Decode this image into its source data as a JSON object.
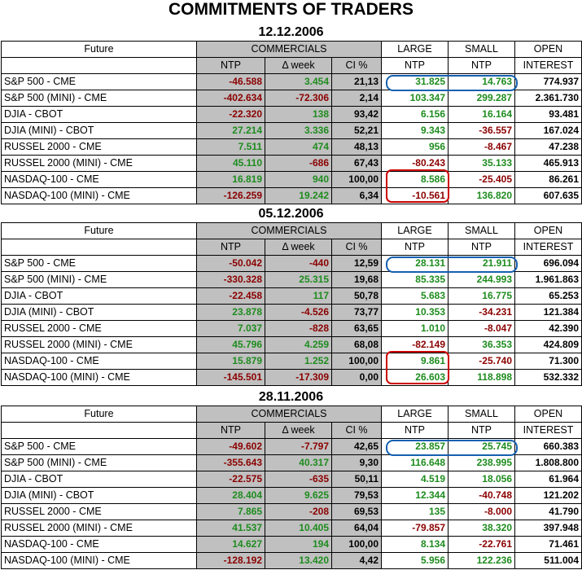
{
  "title": "COMMITMENTS OF TRADERS",
  "headers": {
    "future": "Future",
    "commercials": "COMMERCIALS",
    "ntp": "NTP",
    "dweek": "Δ week",
    "ci": "CI %",
    "large1": "LARGE",
    "large2": "NTP",
    "small1": "SMALL",
    "small2": "NTP",
    "open1": "OPEN",
    "open2": "INTEREST"
  },
  "sections": [
    {
      "date": "12.12.2006",
      "rows": [
        {
          "future": "S&P 500 - CME",
          "ntp": "-46.588",
          "dweek": "3.454",
          "ci": "21,13",
          "large": "31.825",
          "small": "14.763",
          "oi": "774.937"
        },
        {
          "future": "S&P 500 (MINI) - CME",
          "ntp": "-402.634",
          "dweek": "-72.306",
          "ci": "2,14",
          "large": "103.347",
          "small": "299.287",
          "oi": "2.361.730"
        },
        {
          "future": "DJIA - CBOT",
          "ntp": "-22.320",
          "dweek": "138",
          "ci": "93,42",
          "large": "6.156",
          "small": "16.164",
          "oi": "93.481"
        },
        {
          "future": "DJIA (MINI) - CBOT",
          "ntp": "27.214",
          "dweek": "3.336",
          "ci": "52,21",
          "large": "9.343",
          "small": "-36.557",
          "oi": "167.024"
        },
        {
          "future": "RUSSEL 2000 - CME",
          "ntp": "7.511",
          "dweek": "474",
          "ci": "48,13",
          "large": "956",
          "small": "-8.467",
          "oi": "47.238"
        },
        {
          "future": "RUSSEL 2000 (MINI) - CME",
          "ntp": "45.110",
          "dweek": "-686",
          "ci": "67,43",
          "large": "-80.243",
          "small": "35.133",
          "oi": "465.913"
        },
        {
          "future": "NASDAQ-100 - CME",
          "ntp": "16.819",
          "dweek": "940",
          "ci": "100,00",
          "large": "8.586",
          "small": "-25.405",
          "oi": "86.261"
        },
        {
          "future": "NASDAQ-100 (MINI) - CME",
          "ntp": "-126.259",
          "dweek": "19.242",
          "ci": "6,34",
          "large": "-10.561",
          "small": "136.820",
          "oi": "607.635"
        }
      ]
    },
    {
      "date": "05.12.2006",
      "rows": [
        {
          "future": "S&P 500 - CME",
          "ntp": "-50.042",
          "dweek": "-440",
          "ci": "12,59",
          "large": "28.131",
          "small": "21.911",
          "oi": "696.094"
        },
        {
          "future": "S&P 500 (MINI) - CME",
          "ntp": "-330.328",
          "dweek": "25.315",
          "ci": "19,68",
          "large": "85.335",
          "small": "244.993",
          "oi": "1.961.863"
        },
        {
          "future": "DJIA - CBOT",
          "ntp": "-22.458",
          "dweek": "117",
          "ci": "50,78",
          "large": "5.683",
          "small": "16.775",
          "oi": "65.253"
        },
        {
          "future": "DJIA (MINI) - CBOT",
          "ntp": "23.878",
          "dweek": "-4.526",
          "ci": "73,77",
          "large": "10.353",
          "small": "-34.231",
          "oi": "121.384"
        },
        {
          "future": "RUSSEL 2000 - CME",
          "ntp": "7.037",
          "dweek": "-828",
          "ci": "63,65",
          "large": "1.010",
          "small": "-8.047",
          "oi": "42.390"
        },
        {
          "future": "RUSSEL 2000 (MINI) - CME",
          "ntp": "45.796",
          "dweek": "4.259",
          "ci": "68,08",
          "large": "-82.149",
          "small": "36.353",
          "oi": "424.809"
        },
        {
          "future": "NASDAQ-100 - CME",
          "ntp": "15.879",
          "dweek": "1.252",
          "ci": "100,00",
          "large": "9.861",
          "small": "-25.740",
          "oi": "71.300"
        },
        {
          "future": "NASDAQ-100 (MINI) - CME",
          "ntp": "-145.501",
          "dweek": "-17.309",
          "ci": "0,00",
          "large": "26.603",
          "small": "118.898",
          "oi": "532.332"
        }
      ]
    },
    {
      "date": "28.11.2006",
      "rows": [
        {
          "future": "S&P 500 - CME",
          "ntp": "-49.602",
          "dweek": "-7.797",
          "ci": "42,65",
          "large": "23.857",
          "small": "25.745",
          "oi": "660.383"
        },
        {
          "future": "S&P 500 (MINI) - CME",
          "ntp": "-355.643",
          "dweek": "40.317",
          "ci": "9,30",
          "large": "116.648",
          "small": "238.995",
          "oi": "1.808.800"
        },
        {
          "future": "DJIA - CBOT",
          "ntp": "-22.575",
          "dweek": "-635",
          "ci": "50,11",
          "large": "4.519",
          "small": "18.056",
          "oi": "61.964"
        },
        {
          "future": "DJIA (MINI) - CBOT",
          "ntp": "28.404",
          "dweek": "9.625",
          "ci": "79,53",
          "large": "12.344",
          "small": "-40.748",
          "oi": "121.202"
        },
        {
          "future": "RUSSEL 2000 - CME",
          "ntp": "7.865",
          "dweek": "-208",
          "ci": "69,53",
          "large": "135",
          "small": "-8.000",
          "oi": "41.790"
        },
        {
          "future": "RUSSEL 2000 (MINI) - CME",
          "ntp": "41.537",
          "dweek": "10.405",
          "ci": "64,04",
          "large": "-79.857",
          "small": "38.320",
          "oi": "397.948"
        },
        {
          "future": "NASDAQ-100 - CME",
          "ntp": "14.627",
          "dweek": "194",
          "ci": "100,00",
          "large": "8.134",
          "small": "-22.761",
          "oi": "71.461"
        },
        {
          "future": "NASDAQ-100 (MINI) - CME",
          "ntp": "-128.192",
          "dweek": "13.420",
          "ci": "4,42",
          "large": "5.956",
          "small": "122.236",
          "oi": "511.004"
        }
      ]
    }
  ],
  "colors": {
    "positive": "#1e8c1e",
    "negative": "#8b0000",
    "commercials_bg": "#c0c0c0",
    "highlight_blue": "#1560b0",
    "highlight_red": "#cc0000"
  }
}
